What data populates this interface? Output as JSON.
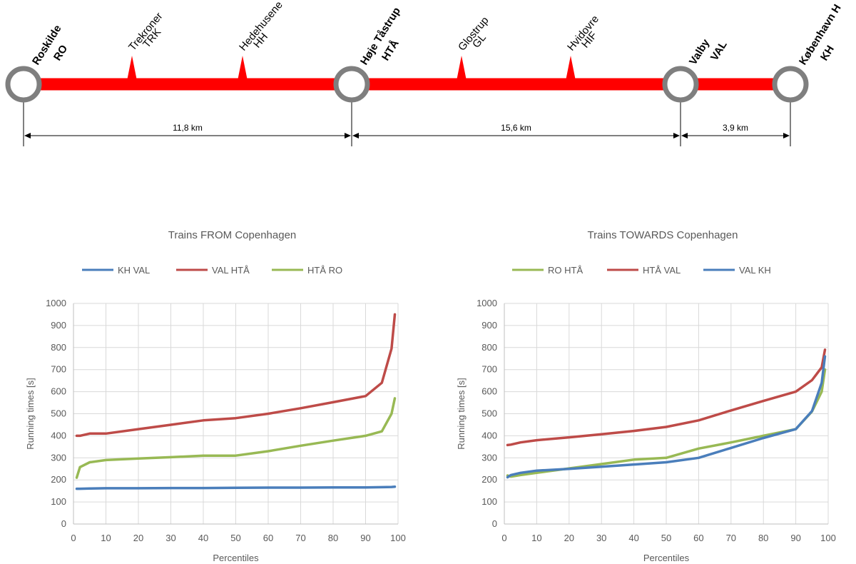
{
  "route_diagram": {
    "line_color": "#ff0000",
    "station_color": "#7f7f7f",
    "major_stations": [
      {
        "name": "Roskilde",
        "code": "RO"
      },
      {
        "name": "Høje Tåstrup",
        "code": "HTÅ"
      },
      {
        "name": "Valby",
        "code": "VAL"
      },
      {
        "name": "København H",
        "code": "KH"
      }
    ],
    "minor_stations": [
      {
        "name": "Trekroner",
        "code": "TRK"
      },
      {
        "name": "Hedehusene",
        "code": "HH"
      },
      {
        "name": "Glostrup",
        "code": "GL"
      },
      {
        "name": "Hvidovre",
        "code": "HIF"
      }
    ],
    "distances": [
      "11,8 km",
      "15,6 km",
      "3,9 km"
    ]
  },
  "chart_data": [
    {
      "type": "line",
      "title": "Trains FROM Copenhagen",
      "xlabel": "Percentiles",
      "ylabel": "Running times [s]",
      "xlim": [
        0,
        100
      ],
      "ylim": [
        0,
        1000
      ],
      "x_ticks": [
        0,
        10,
        20,
        30,
        40,
        50,
        60,
        70,
        80,
        90,
        100
      ],
      "y_ticks": [
        0,
        100,
        200,
        300,
        400,
        500,
        600,
        700,
        800,
        900,
        1000
      ],
      "grid": true,
      "legend_position": "top",
      "series": [
        {
          "name": "KH VAL",
          "color": "#4a7ebb",
          "x": [
            1,
            2,
            5,
            10,
            20,
            30,
            40,
            50,
            60,
            70,
            80,
            90,
            95,
            98,
            99
          ],
          "values": [
            160,
            160,
            161,
            162,
            162,
            163,
            163,
            164,
            165,
            165,
            166,
            166,
            167,
            168,
            169
          ]
        },
        {
          "name": "VAL HTÅ",
          "color": "#be4b48",
          "x": [
            1,
            2,
            5,
            10,
            20,
            30,
            40,
            50,
            60,
            70,
            80,
            90,
            95,
            98,
            99
          ],
          "values": [
            400,
            400,
            410,
            410,
            430,
            450,
            470,
            480,
            500,
            525,
            552,
            580,
            640,
            795,
            950
          ]
        },
        {
          "name": "HTÅ RO",
          "color": "#98b954",
          "x": [
            1,
            2,
            5,
            10,
            20,
            30,
            40,
            50,
            60,
            70,
            80,
            90,
            95,
            98,
            99
          ],
          "values": [
            210,
            258,
            280,
            290,
            297,
            303,
            310,
            310,
            330,
            355,
            378,
            400,
            420,
            500,
            570
          ]
        }
      ]
    },
    {
      "type": "line",
      "title": "Trains TOWARDS Copenhagen",
      "xlabel": "Percentiles",
      "ylabel": "Running times [s]",
      "xlim": [
        0,
        100
      ],
      "ylim": [
        0,
        1000
      ],
      "x_ticks": [
        0,
        10,
        20,
        30,
        40,
        50,
        60,
        70,
        80,
        90,
        100
      ],
      "y_ticks": [
        0,
        100,
        200,
        300,
        400,
        500,
        600,
        700,
        800,
        900,
        1000
      ],
      "grid": true,
      "legend_position": "top",
      "series": [
        {
          "name": "RO HTÅ",
          "color": "#98b954",
          "x": [
            1,
            2,
            5,
            10,
            20,
            30,
            40,
            50,
            60,
            70,
            80,
            90,
            95,
            98,
            99
          ],
          "values": [
            220,
            215,
            222,
            232,
            252,
            272,
            292,
            300,
            342,
            370,
            400,
            430,
            510,
            600,
            700
          ]
        },
        {
          "name": "HTÅ VAL",
          "color": "#be4b48",
          "x": [
            1,
            2,
            5,
            10,
            20,
            30,
            40,
            50,
            60,
            70,
            80,
            90,
            95,
            98,
            99
          ],
          "values": [
            358,
            360,
            370,
            380,
            393,
            407,
            422,
            440,
            470,
            515,
            558,
            600,
            652,
            710,
            790
          ]
        },
        {
          "name": "VAL KH",
          "color": "#4a7ebb",
          "x": [
            1,
            2,
            5,
            10,
            20,
            30,
            40,
            50,
            60,
            70,
            80,
            90,
            95,
            98,
            99
          ],
          "values": [
            212,
            222,
            232,
            242,
            250,
            260,
            270,
            280,
            300,
            345,
            390,
            430,
            512,
            640,
            760
          ]
        }
      ]
    }
  ]
}
